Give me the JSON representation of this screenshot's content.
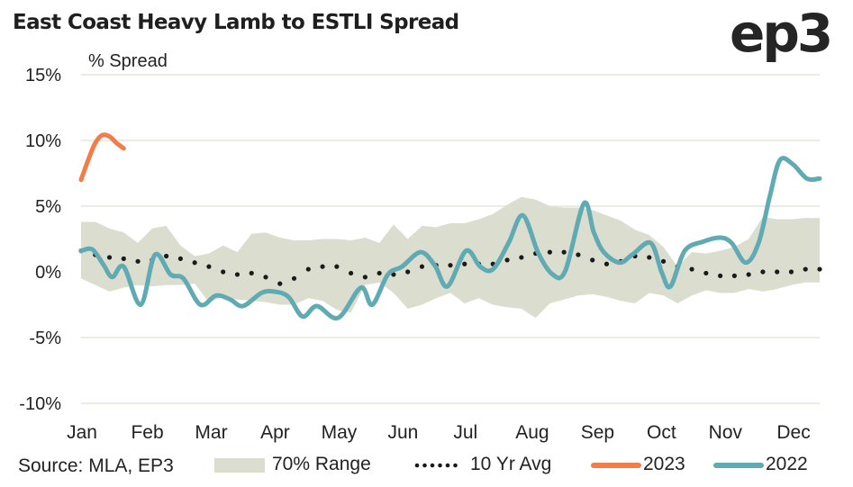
{
  "header": {
    "title": "East Coast Heavy Lamb to ESTLI Spread",
    "logo_text": "ep3"
  },
  "colors": {
    "range_fill": "#dbddce",
    "avg_dots": "#1a1a1a",
    "series_2023": "#f47c48",
    "series_2022": "#5faab3",
    "grid": "#ecece4"
  },
  "chart_data": {
    "type": "line",
    "title": "East Coast Heavy Lamb to ESTLI Spread",
    "ylabel": "% Spread",
    "xlabel": "",
    "ylim": [
      -10,
      15
    ],
    "yticks": [
      15,
      10,
      5,
      0,
      -5,
      -10
    ],
    "ytick_labels": [
      "15%",
      "10%",
      "5%",
      "0%",
      "-5%",
      "-10%"
    ],
    "x_unit": "week of year",
    "xlim": [
      0,
      52
    ],
    "month_labels": [
      "Jan",
      "Feb",
      "Mar",
      "Apr",
      "May",
      "Jun",
      "Jul",
      "Aug",
      "Sep",
      "Oct",
      "Nov",
      "Dec"
    ],
    "month_positions": [
      0,
      4.6,
      9.1,
      13.6,
      18.1,
      22.6,
      27.0,
      31.7,
      36.3,
      40.8,
      45.3,
      50.1
    ],
    "grid": true,
    "legend_position": "bottom",
    "source": "Source: MLA, EP3",
    "series": [
      {
        "name": "70% Range",
        "kind": "band",
        "x": [
          0,
          1,
          2,
          3,
          4,
          5,
          6,
          7,
          8,
          9,
          10,
          11,
          12,
          13,
          14,
          15,
          16,
          17,
          18,
          19,
          20,
          21,
          22,
          23,
          24,
          25,
          26,
          27,
          28,
          29,
          30,
          31,
          32,
          33,
          34,
          35,
          36,
          37,
          38,
          39,
          40,
          41,
          42,
          43,
          44,
          45,
          46,
          47,
          48,
          49,
          50,
          51,
          52
        ],
        "upper": [
          3.8,
          3.8,
          3.3,
          3.0,
          2.2,
          3.3,
          3.5,
          2.0,
          1.2,
          1.4,
          2.0,
          1.5,
          2.9,
          3.0,
          2.6,
          2.4,
          2.4,
          2.5,
          2.5,
          2.4,
          2.6,
          2.2,
          3.6,
          2.5,
          3.5,
          3.4,
          3.7,
          3.7,
          4.0,
          4.4,
          5.1,
          5.7,
          5.5,
          5.0,
          4.9,
          4.9,
          4.7,
          4.3,
          3.9,
          3.2,
          2.8,
          1.9,
          0.4,
          1.5,
          1.4,
          1.6,
          1.9,
          2.5,
          4.2,
          4.0,
          4.0,
          4.1,
          4.1
        ],
        "lower": [
          -0.5,
          -1.0,
          -1.5,
          -1.2,
          -1.0,
          -1.1,
          -1.0,
          -1.0,
          -0.9,
          -2.3,
          -1.9,
          -2.1,
          -2.2,
          -2.3,
          -2.5,
          -2.5,
          -2.0,
          -2.2,
          -2.9,
          -3.1,
          -1.0,
          -0.8,
          -1.6,
          -2.8,
          -2.5,
          -2.0,
          -1.6,
          -2.4,
          -2.0,
          -2.5,
          -2.7,
          -2.8,
          -3.5,
          -2.4,
          -2.1,
          -1.8,
          -1.7,
          -1.9,
          -2.2,
          -2.4,
          -1.6,
          -1.8,
          -2.4,
          -1.8,
          -1.4,
          -1.6,
          -1.6,
          -1.3,
          -1.5,
          -1.3,
          -1.0,
          -0.8,
          -0.8
        ]
      },
      {
        "name": "10 Yr Avg",
        "kind": "dotted",
        "x": [
          0,
          1,
          2,
          3,
          4,
          5,
          6,
          7,
          8,
          9,
          10,
          11,
          12,
          13,
          14,
          15,
          16,
          17,
          18,
          19,
          20,
          21,
          22,
          23,
          24,
          25,
          26,
          27,
          28,
          29,
          30,
          31,
          32,
          33,
          34,
          35,
          36,
          37,
          38,
          39,
          40,
          41,
          42,
          43,
          44,
          45,
          46,
          47,
          48,
          49,
          50,
          51,
          52
        ],
        "values": [
          1.6,
          1.3,
          1.1,
          1.0,
          0.8,
          0.9,
          1.2,
          1.0,
          0.7,
          0.4,
          0.0,
          -0.2,
          -0.1,
          -0.4,
          -0.9,
          -0.5,
          0.2,
          0.4,
          0.4,
          -0.1,
          -0.4,
          -0.1,
          -0.2,
          0.0,
          0.4,
          0.5,
          0.5,
          0.6,
          0.6,
          0.6,
          0.9,
          1.1,
          1.4,
          1.5,
          1.5,
          1.3,
          0.9,
          0.6,
          0.8,
          1.2,
          1.1,
          0.8,
          0.4,
          0.2,
          -0.1,
          -0.3,
          -0.3,
          -0.2,
          0.0,
          0.0,
          0.0,
          0.2,
          0.2
        ]
      },
      {
        "name": "2023",
        "kind": "line",
        "x": [
          0,
          0.5,
          1.0,
          1.5,
          2.0,
          2.5,
          3.0
        ],
        "values": [
          7.0,
          8.5,
          9.8,
          10.4,
          10.3,
          9.8,
          9.4
        ]
      },
      {
        "name": "2022",
        "kind": "line",
        "x": [
          0,
          0.8,
          1.6,
          2.2,
          3.0,
          4.2,
          5.2,
          6.3,
          7.2,
          8.4,
          9.5,
          10.5,
          11.4,
          12.7,
          13.6,
          14.6,
          15.6,
          16.6,
          18.1,
          19.7,
          20.5,
          21.6,
          22.6,
          23.9,
          24.9,
          25.8,
          27.1,
          28.1,
          29.0,
          30.1,
          31.1,
          32.2,
          33.2,
          34.1,
          35.4,
          36.1,
          36.8,
          37.9,
          38.8,
          40.1,
          40.9,
          41.5,
          42.5,
          43.8,
          45.0,
          45.8,
          46.8,
          47.7,
          48.5,
          49.2,
          50.1,
          51.1,
          52.0
        ],
        "values": [
          1.6,
          1.7,
          0.5,
          -0.4,
          0.4,
          -2.5,
          1.3,
          -0.2,
          -0.5,
          -2.5,
          -1.8,
          -2.1,
          -2.6,
          -1.6,
          -1.5,
          -1.9,
          -3.4,
          -2.6,
          -3.5,
          -1.2,
          -2.5,
          -0.2,
          0.4,
          1.5,
          0.5,
          -1.1,
          1.6,
          0.4,
          0.2,
          2.2,
          4.3,
          1.4,
          -0.2,
          0.1,
          5.2,
          3.0,
          1.5,
          0.7,
          1.3,
          2.2,
          -0.1,
          -1.1,
          1.6,
          2.3,
          2.6,
          2.2,
          0.7,
          2.2,
          5.8,
          8.5,
          8.2,
          7.1,
          7.1
        ]
      }
    ]
  },
  "legend": {
    "source": "Source: MLA, EP3",
    "items": [
      {
        "label": "70% Range",
        "kind": "band"
      },
      {
        "label": "10 Yr Avg",
        "kind": "dotted"
      },
      {
        "label": "2023",
        "kind": "line"
      },
      {
        "label": "2022",
        "kind": "line"
      }
    ]
  }
}
